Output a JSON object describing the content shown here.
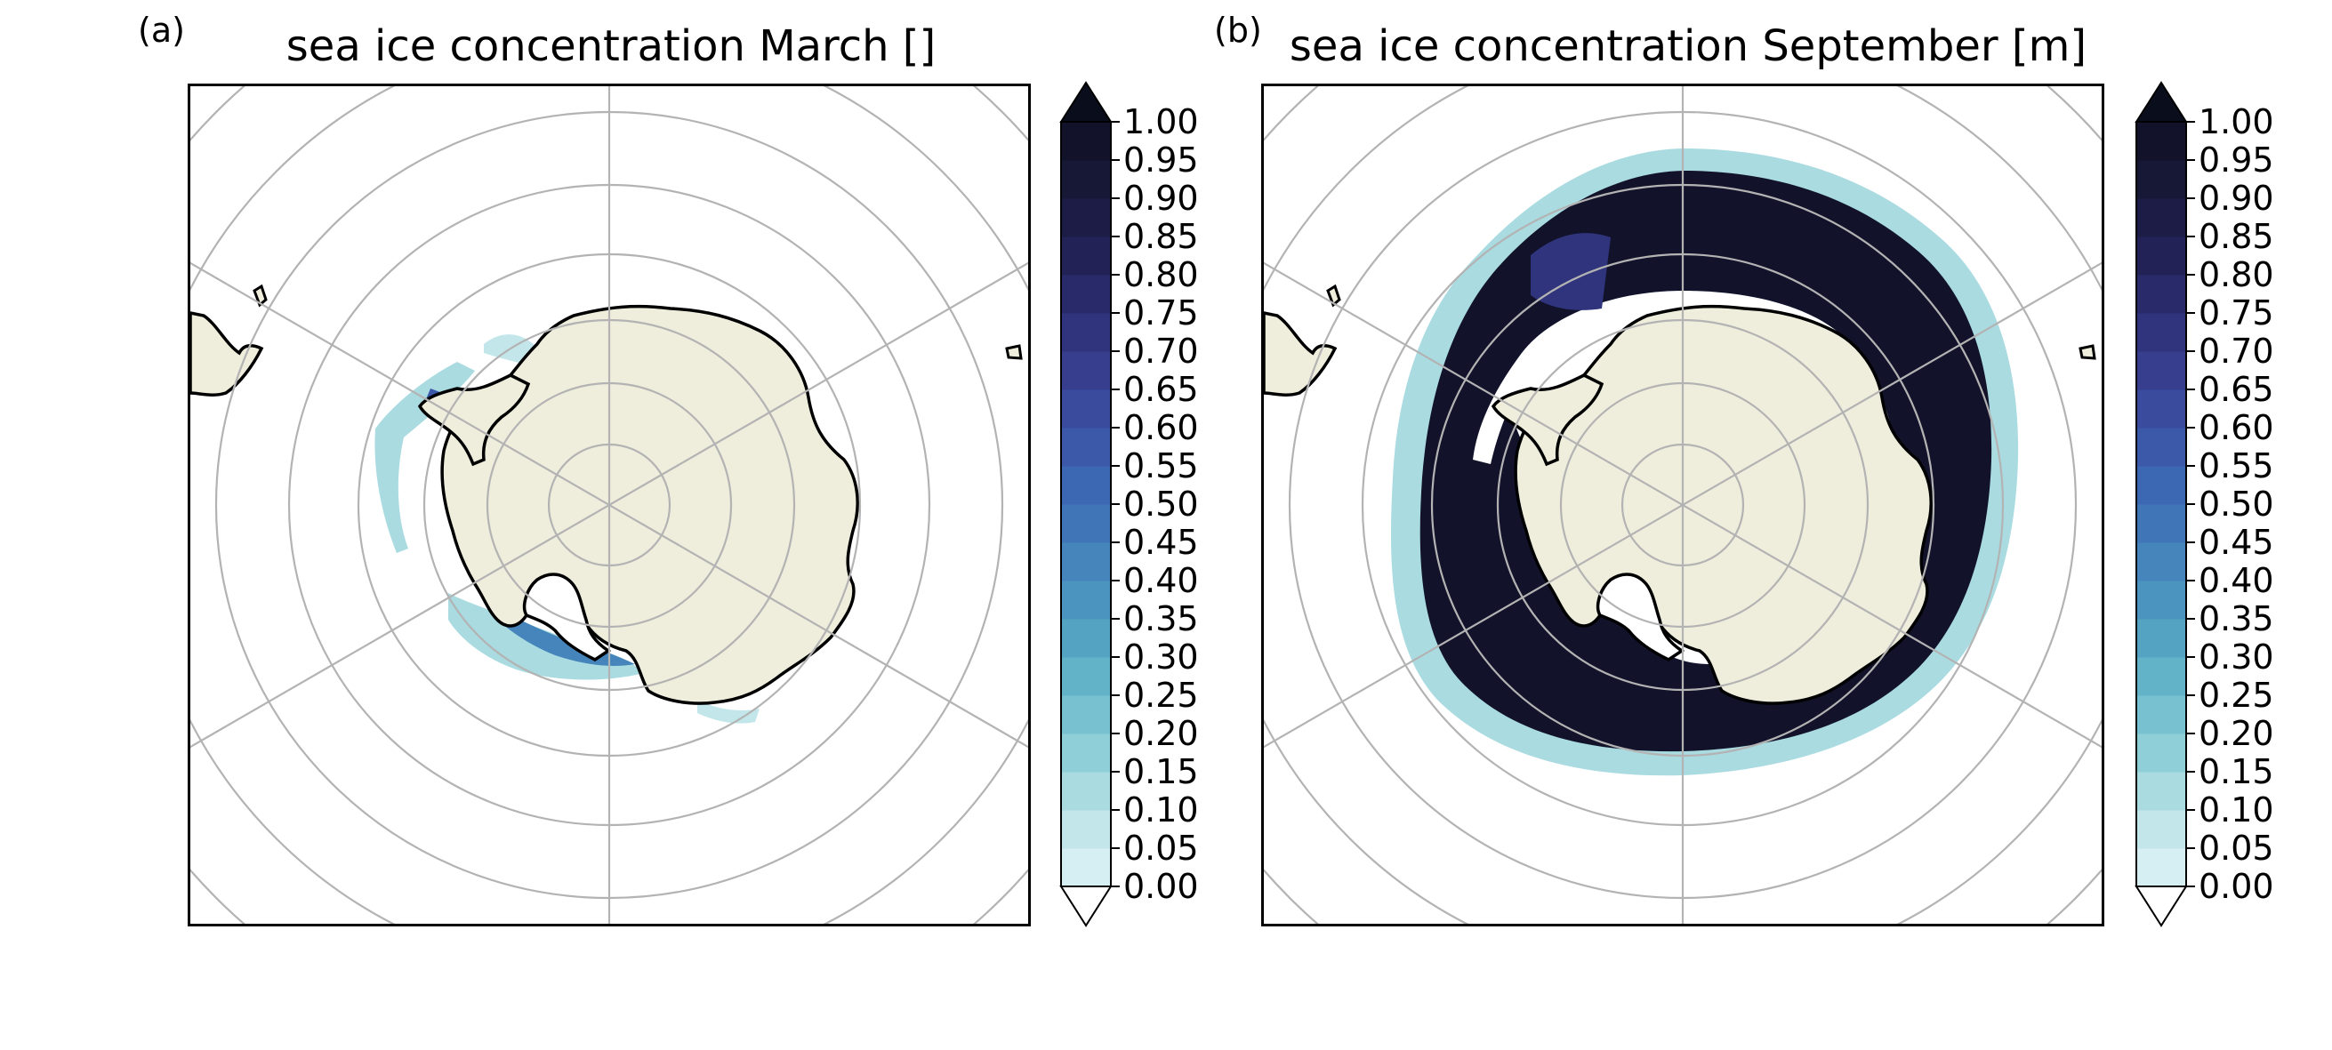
{
  "panels": [
    {
      "letter": "(a)",
      "title": "sea ice concentration March []"
    },
    {
      "letter": "(b)",
      "title": "sea ice concentration September [m]"
    }
  ],
  "colorbar": {
    "ticks": [
      "1.00",
      "0.95",
      "0.90",
      "0.85",
      "0.80",
      "0.75",
      "0.70",
      "0.65",
      "0.60",
      "0.55",
      "0.50",
      "0.45",
      "0.40",
      "0.35",
      "0.30",
      "0.25",
      "0.20",
      "0.15",
      "0.10",
      "0.05",
      "0.00"
    ],
    "colors_low_to_high": [
      "#d6eff2",
      "#c2e6ea",
      "#a9dbe1",
      "#8fcfd8",
      "#78c1d0",
      "#62b2c8",
      "#55a3c2",
      "#4b94bf",
      "#4585bb",
      "#4076b7",
      "#3c67b2",
      "#3b58a9",
      "#3a4a9d",
      "#363e8d",
      "#2f347c",
      "#292a69",
      "#222257",
      "#1c1c46",
      "#171836",
      "#12132b"
    ],
    "under_color": "#ffffff",
    "over_color": "#0a0d1c"
  },
  "colors": {
    "land": "#efeedd",
    "coastline": "#000000",
    "graticule": "#b3b3b3",
    "ice_max": "#12132b"
  }
}
